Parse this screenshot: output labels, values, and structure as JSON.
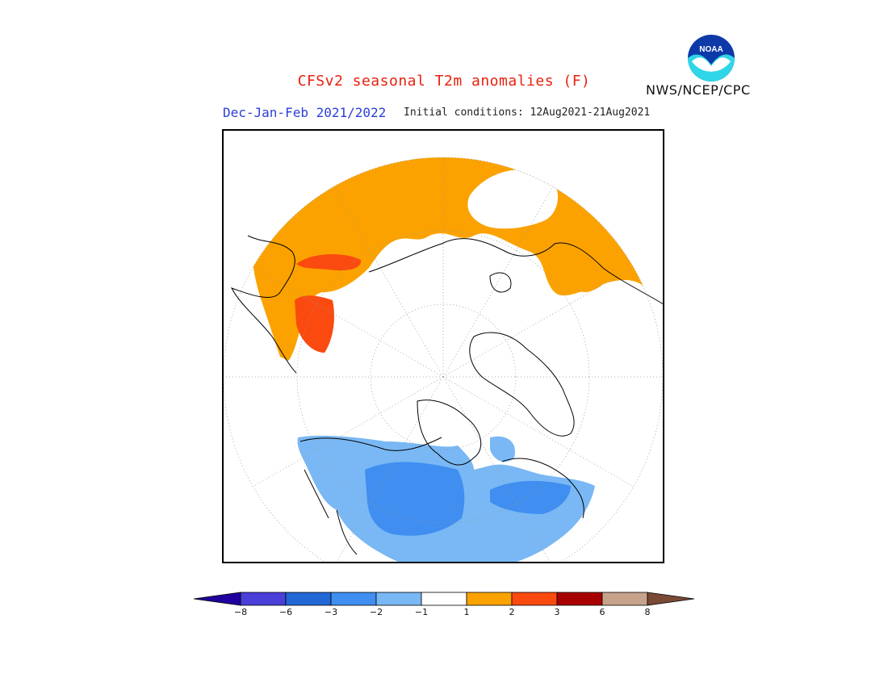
{
  "title": "CFSv2 seasonal T2m anomalies (F)",
  "season": "Dec-Jan-Feb 2021/2022",
  "initial_conditions": "Initial conditions: 12Aug2021-21Aug2021",
  "organization": "NWS/NCEP/CPC",
  "logo": {
    "text": "NOAA",
    "icon": "noaa-logo-icon"
  },
  "map": {
    "projection": "north-polar-stereographic",
    "grid": true
  },
  "colors": {
    "title": "#e8200f",
    "season": "#2a3fd6",
    "warm_1_2": "#fba200",
    "warm_2_3": "#fb4a10",
    "warm_3_6": "#a80000",
    "cool_m1_m2": "#79b8f4",
    "cool_m2_m3": "#3f8ef0"
  },
  "colorbar": {
    "bins": [
      {
        "color": "#21009f",
        "end": "left-arrow"
      },
      {
        "color": "#4a3fd8"
      },
      {
        "color": "#2168d6"
      },
      {
        "color": "#3f8ef0"
      },
      {
        "color": "#79b8f4"
      },
      {
        "color": "#ffffff"
      },
      {
        "color": "#fba200"
      },
      {
        "color": "#fb4a10"
      },
      {
        "color": "#a80000"
      },
      {
        "color": "#c7a38c"
      },
      {
        "color": "#7a4a35",
        "end": "right-arrow"
      }
    ],
    "ticks": [
      "-8",
      "-6",
      "-3",
      "-2",
      "-1",
      "1",
      "2",
      "3",
      "6",
      "8"
    ]
  }
}
